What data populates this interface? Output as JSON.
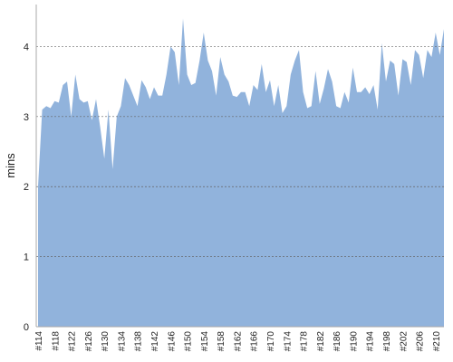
{
  "chart_data": {
    "type": "area",
    "y_label": "mins",
    "color": "#91b3dc",
    "grid": true,
    "ylim": [
      0,
      4.6
    ],
    "yticks": [
      0,
      1,
      2,
      3,
      4
    ],
    "categories": [
      "#114",
      null,
      null,
      null,
      "#118",
      null,
      null,
      null,
      "#122",
      null,
      null,
      null,
      "#126",
      null,
      null,
      null,
      "#130",
      null,
      null,
      null,
      "#134",
      null,
      null,
      null,
      "#138",
      null,
      null,
      null,
      "#142",
      null,
      null,
      null,
      "#146",
      null,
      null,
      null,
      "#150",
      null,
      null,
      null,
      "#154",
      null,
      null,
      null,
      "#158",
      null,
      null,
      null,
      "#162",
      null,
      null,
      null,
      "#166",
      null,
      null,
      null,
      "#170",
      null,
      null,
      null,
      "#174",
      null,
      null,
      null,
      "#178",
      null,
      null,
      null,
      "#182",
      null,
      null,
      null,
      "#186",
      null,
      null,
      null,
      "#190",
      null,
      null,
      null,
      "#194",
      null,
      null,
      null,
      "#198",
      null,
      null,
      null,
      "#202",
      null,
      null,
      null,
      "#206",
      null,
      null,
      null,
      "#210",
      null,
      null
    ],
    "values": [
      2.0,
      3.1,
      3.15,
      3.12,
      3.22,
      3.2,
      3.45,
      3.5,
      3.0,
      3.6,
      3.25,
      3.2,
      3.22,
      2.95,
      3.25,
      2.85,
      2.4,
      3.1,
      2.25,
      3.0,
      3.15,
      3.55,
      3.45,
      3.3,
      3.15,
      3.52,
      3.42,
      3.25,
      3.42,
      3.3,
      3.3,
      3.6,
      4.0,
      3.92,
      3.45,
      4.4,
      3.6,
      3.45,
      3.48,
      3.8,
      4.2,
      3.8,
      3.65,
      3.3,
      3.85,
      3.6,
      3.5,
      3.3,
      3.28,
      3.35,
      3.35,
      3.15,
      3.45,
      3.38,
      3.75,
      3.35,
      3.52,
      3.15,
      3.45,
      3.05,
      3.15,
      3.6,
      3.8,
      3.95,
      3.35,
      3.12,
      3.15,
      3.65,
      3.18,
      3.4,
      3.68,
      3.5,
      3.15,
      3.12,
      3.35,
      3.2,
      3.7,
      3.35,
      3.35,
      3.42,
      3.32,
      3.45,
      3.1,
      4.05,
      3.5,
      3.8,
      3.75,
      3.3,
      3.82,
      3.78,
      3.45,
      3.95,
      3.88,
      3.55,
      3.95,
      3.85,
      4.2,
      3.88,
      4.25
    ]
  }
}
